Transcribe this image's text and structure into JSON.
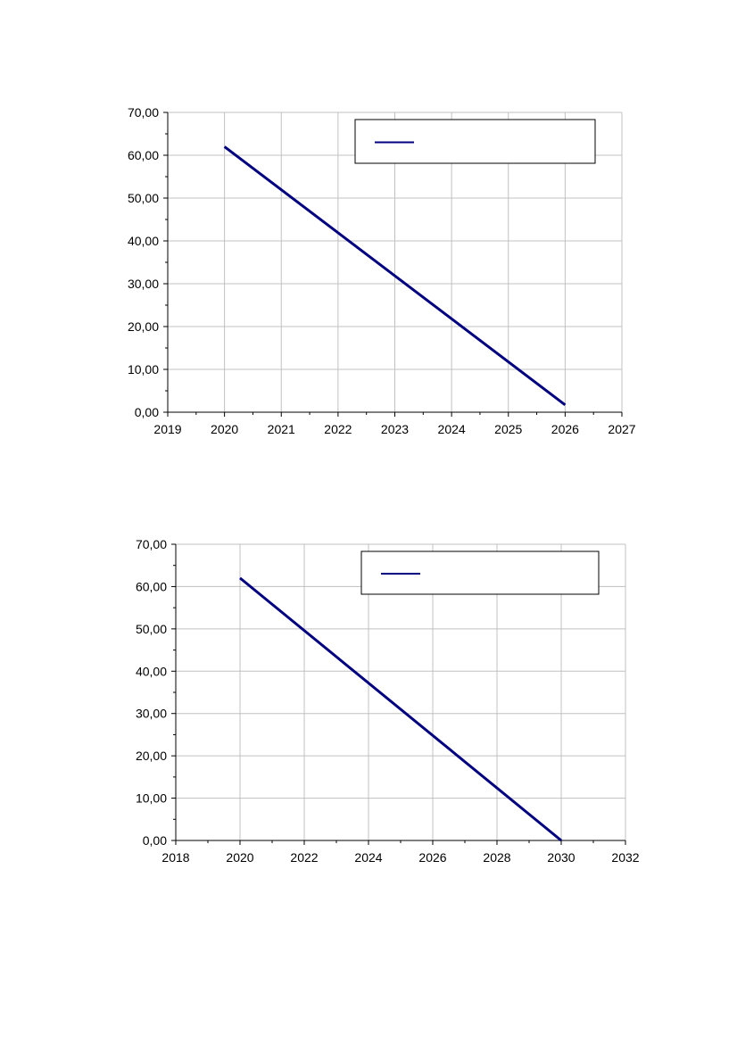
{
  "chart_data": [
    {
      "type": "line",
      "title": "",
      "xlabel": "",
      "ylabel": "",
      "xlim": [
        2019,
        2027
      ],
      "ylim": [
        0,
        70
      ],
      "x_ticks": [
        "2019",
        "2020",
        "2021",
        "2022",
        "2023",
        "2024",
        "2025",
        "2026",
        "2027"
      ],
      "y_ticks": [
        "0,00",
        "10,00",
        "20,00",
        "30,00",
        "40,00",
        "50,00",
        "60,00",
        "70,00"
      ],
      "grid": true,
      "legend": "top-right",
      "series": [
        {
          "color": "#000080",
          "x": [
            2020,
            2026
          ],
          "y": [
            62,
            1.7
          ]
        }
      ]
    },
    {
      "type": "line",
      "title": "",
      "xlabel": "",
      "ylabel": "",
      "xlim": [
        2018,
        2032
      ],
      "ylim": [
        0,
        70
      ],
      "x_ticks": [
        "2018",
        "2020",
        "2022",
        "2024",
        "2026",
        "2028",
        "2030",
        "2032"
      ],
      "y_ticks": [
        "0,00",
        "10,00",
        "20,00",
        "30,00",
        "40,00",
        "50,00",
        "60,00",
        "70,00"
      ],
      "grid": true,
      "legend": "top-right",
      "series": [
        {
          "color": "#000080",
          "x": [
            2020,
            2030
          ],
          "y": [
            62,
            0
          ]
        }
      ]
    }
  ]
}
